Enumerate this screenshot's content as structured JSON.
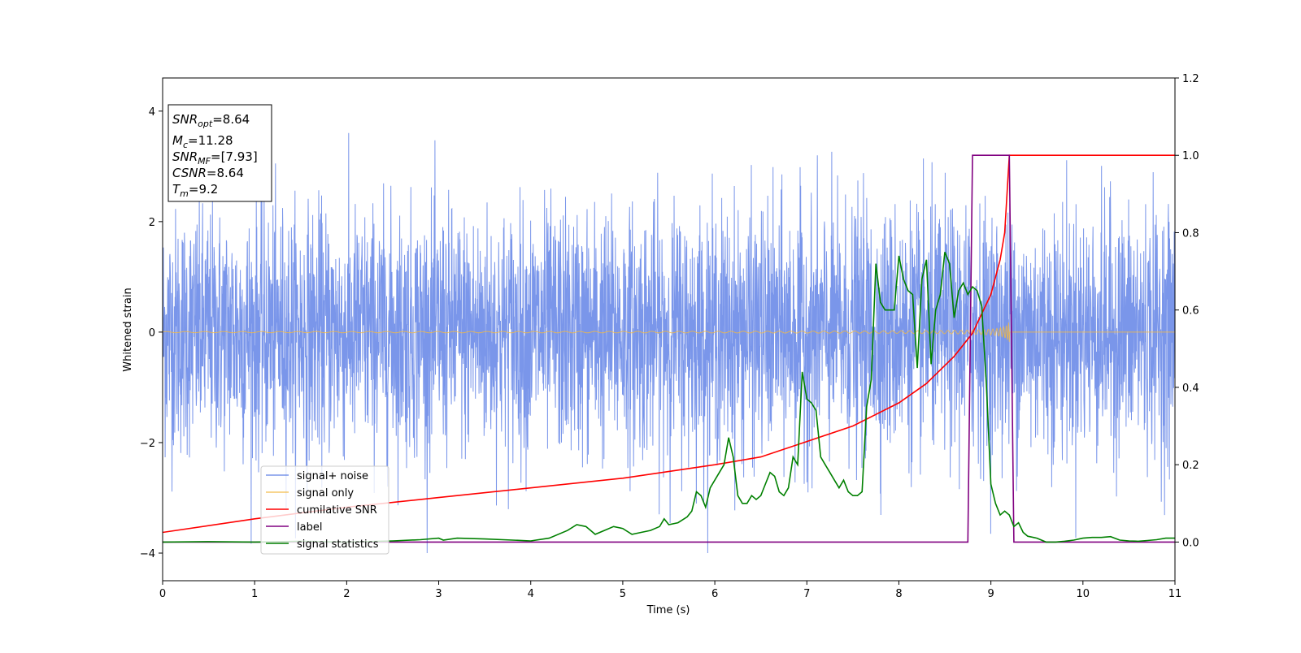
{
  "chart_data": {
    "type": "line",
    "title": "",
    "xlabel": "Time (s)",
    "ylabel": "Whitened strain",
    "xlim": [
      0,
      11
    ],
    "ylim_left": [
      -4.5,
      4.6
    ],
    "ylim_right": [
      -0.1,
      1.2
    ],
    "x_ticks": [
      "0",
      "1",
      "2",
      "3",
      "4",
      "5",
      "6",
      "7",
      "8",
      "9",
      "10",
      "11"
    ],
    "y_left_ticks": [
      "4",
      "2",
      "0",
      "−2",
      "−4"
    ],
    "y_right_ticks": [
      "1.2",
      "1.0",
      "0.8",
      "0.6",
      "0.4",
      "0.2",
      "0.0"
    ],
    "grid": false,
    "legend_position": "lower-left",
    "annotations": {
      "snr_opt": "SNR_opt=8.64",
      "mc": "M_c=11.28",
      "snr_mf": "SNR_MF=[7.93]",
      "csnr": "CSNR=8.64",
      "tm": "T_m=9.2"
    },
    "series": [
      {
        "name": "signal+ noise",
        "color": "#4169e1",
        "axis": "left",
        "description_amplitude_range": [
          -4,
          4.15
        ]
      },
      {
        "name": "signal only",
        "color": "#f4b942",
        "axis": "left",
        "chirp_end": 9.2,
        "max_amplitude": 0.35
      },
      {
        "name": "cumilative SNR",
        "color": "#ff0000",
        "axis": "right",
        "x": [
          0,
          1,
          2,
          3,
          4,
          5,
          6,
          6.5,
          7,
          7.5,
          8,
          8.3,
          8.6,
          8.8,
          9.0,
          9.1,
          9.15,
          9.2,
          11
        ],
        "y": [
          0.025,
          0.06,
          0.09,
          0.115,
          0.14,
          0.165,
          0.2,
          0.22,
          0.26,
          0.3,
          0.36,
          0.41,
          0.48,
          0.54,
          0.64,
          0.73,
          0.8,
          1.0,
          1.0
        ]
      },
      {
        "name": "label",
        "color": "#800080",
        "axis": "right",
        "x": [
          0,
          8.75,
          8.8,
          9.2,
          9.25,
          11
        ],
        "y": [
          0,
          0,
          1,
          1,
          0,
          0
        ]
      },
      {
        "name": "signal statistics",
        "color": "#008000",
        "axis": "right",
        "x": [
          0,
          0.5,
          1,
          1.5,
          2,
          2.5,
          2.8,
          3,
          3.05,
          3.2,
          3.5,
          3.8,
          4,
          4.2,
          4.4,
          4.5,
          4.6,
          4.7,
          4.8,
          4.9,
          5,
          5.1,
          5.2,
          5.3,
          5.4,
          5.45,
          5.5,
          5.6,
          5.7,
          5.75,
          5.8,
          5.85,
          5.9,
          5.95,
          6.05,
          6.1,
          6.15,
          6.2,
          6.25,
          6.3,
          6.35,
          6.4,
          6.45,
          6.5,
          6.55,
          6.6,
          6.65,
          6.7,
          6.75,
          6.8,
          6.85,
          6.9,
          6.95,
          7.0,
          7.05,
          7.1,
          7.15,
          7.2,
          7.25,
          7.3,
          7.35,
          7.4,
          7.45,
          7.5,
          7.55,
          7.6,
          7.65,
          7.7,
          7.75,
          7.8,
          7.85,
          7.95,
          8.0,
          8.05,
          8.1,
          8.15,
          8.2,
          8.25,
          8.3,
          8.35,
          8.4,
          8.45,
          8.5,
          8.55,
          8.6,
          8.65,
          8.7,
          8.75,
          8.8,
          8.85,
          8.9,
          8.95,
          9.0,
          9.05,
          9.1,
          9.15,
          9.2,
          9.25,
          9.3,
          9.35,
          9.4,
          9.5,
          9.6,
          9.7,
          9.8,
          9.9,
          10.0,
          10.1,
          10.2,
          10.3,
          10.4,
          10.5,
          10.6,
          10.7,
          10.8,
          10.9,
          11.0
        ],
        "y": [
          0.0,
          0.001,
          0.0,
          0.002,
          0.0,
          0.003,
          0.006,
          0.01,
          0.005,
          0.01,
          0.008,
          0.005,
          0.003,
          0.01,
          0.03,
          0.045,
          0.04,
          0.02,
          0.03,
          0.04,
          0.035,
          0.02,
          0.025,
          0.03,
          0.04,
          0.06,
          0.045,
          0.05,
          0.065,
          0.08,
          0.13,
          0.12,
          0.09,
          0.14,
          0.18,
          0.2,
          0.27,
          0.22,
          0.12,
          0.1,
          0.1,
          0.12,
          0.11,
          0.12,
          0.15,
          0.18,
          0.17,
          0.13,
          0.12,
          0.14,
          0.22,
          0.2,
          0.44,
          0.37,
          0.36,
          0.34,
          0.22,
          0.2,
          0.18,
          0.16,
          0.14,
          0.16,
          0.13,
          0.12,
          0.12,
          0.13,
          0.35,
          0.42,
          0.72,
          0.62,
          0.6,
          0.6,
          0.74,
          0.68,
          0.65,
          0.64,
          0.45,
          0.68,
          0.73,
          0.46,
          0.6,
          0.64,
          0.75,
          0.72,
          0.58,
          0.65,
          0.67,
          0.64,
          0.66,
          0.65,
          0.61,
          0.41,
          0.15,
          0.1,
          0.07,
          0.08,
          0.07,
          0.04,
          0.05,
          0.025,
          0.015,
          0.01,
          0.0,
          0.0,
          0.002,
          0.005,
          0.01,
          0.012,
          0.012,
          0.014,
          0.005,
          0.003,
          0.002,
          0.004,
          0.006,
          0.01,
          0.01
        ]
      }
    ]
  }
}
